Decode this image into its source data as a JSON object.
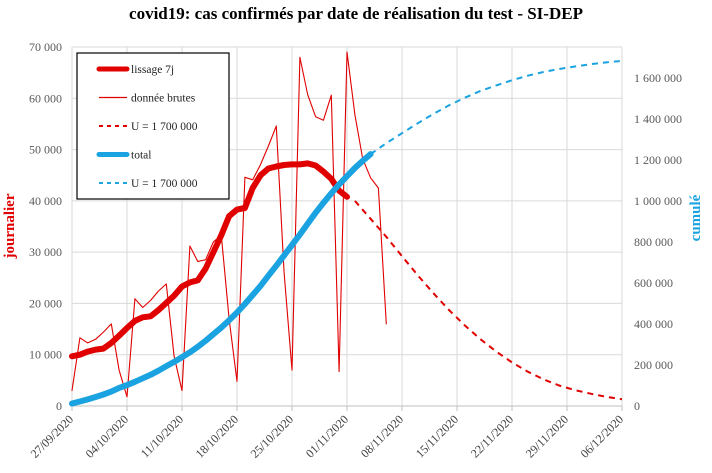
{
  "chart_data": {
    "type": "line",
    "title": "covid19: cas confirmés par date de réalisation du test - SI-DEP",
    "y_left": {
      "label": "journalier",
      "color": "#e00000",
      "range": [
        0,
        70000
      ],
      "ticks": [
        "0",
        "10 000",
        "20 000",
        "30 000",
        "40 000",
        "50 000",
        "60 000",
        "70 000"
      ]
    },
    "y_right": {
      "label": "cumulé",
      "color": "#1aa3e0",
      "range": [
        0,
        1750000
      ],
      "ticks": [
        "0",
        "200 000",
        "400 000",
        "600 000",
        "800 000",
        "1 000 000",
        "1 200 000",
        "1 400 000",
        "1 600 000"
      ]
    },
    "x_range": [
      0,
      70
    ],
    "x_ticks": [
      {
        "x": 0,
        "label": "27/09/2020"
      },
      {
        "x": 7,
        "label": "04/10/2020"
      },
      {
        "x": 14,
        "label": "11/10/2020"
      },
      {
        "x": 21,
        "label": "18/10/2020"
      },
      {
        "x": 28,
        "label": "25/10/2020"
      },
      {
        "x": 35,
        "label": "01/11/2020"
      },
      {
        "x": 42,
        "label": "08/11/2020"
      },
      {
        "x": 49,
        "label": "15/11/2020"
      },
      {
        "x": 56,
        "label": "22/11/2020"
      },
      {
        "x": 63,
        "label": "29/11/2020"
      },
      {
        "x": 70,
        "label": "06/12/2020"
      }
    ],
    "legend": {
      "position": "top-left",
      "entries": [
        {
          "label": "lissage 7j",
          "color": "#e00000",
          "style": "thick"
        },
        {
          "label": "donnée brutes",
          "color": "#e00000",
          "style": "thin"
        },
        {
          "label": "U = 1 700 000",
          "color": "#e00000",
          "style": "dashed"
        },
        {
          "label": "total",
          "color": "#1aa3e0",
          "style": "thick"
        },
        {
          "label": "U = 1 700 000",
          "color": "#1aa3e0",
          "style": "dashed"
        }
      ]
    },
    "series": [
      {
        "name": "lissage 7j",
        "axis": "left",
        "color": "#e00000",
        "style": "thick",
        "x": [
          0,
          1,
          2,
          3,
          4,
          5,
          6,
          7,
          8,
          9,
          10,
          11,
          12,
          13,
          14,
          15,
          16,
          17,
          18,
          19,
          20,
          21,
          22,
          23,
          24,
          25,
          26,
          27,
          28,
          29,
          30,
          31,
          32,
          33,
          34,
          35,
          36,
          37,
          38,
          39
        ],
        "y": [
          9700,
          10000,
          10600,
          11000,
          11200,
          12300,
          13700,
          15200,
          16600,
          17300,
          17500,
          18700,
          20100,
          21500,
          23300,
          24100,
          24500,
          26800,
          30000,
          33300,
          37000,
          38300,
          38600,
          42500,
          45000,
          46300,
          46700,
          47000,
          47100,
          47100,
          47300,
          46900,
          45700,
          44300,
          42000,
          40800,
          null,
          null,
          null,
          null
        ]
      },
      {
        "name": "donnée brutes",
        "axis": "left",
        "color": "#e00000",
        "style": "thin",
        "x": [
          0,
          1,
          2,
          3,
          4,
          5,
          6,
          7,
          8,
          9,
          10,
          11,
          12,
          13,
          14,
          15,
          16,
          17,
          18,
          19,
          20,
          21,
          22,
          23,
          24,
          25,
          26,
          27,
          28,
          29,
          30,
          31,
          32,
          33,
          34,
          35,
          36,
          37,
          38,
          39,
          40,
          41
        ],
        "y": [
          3000,
          13300,
          12300,
          13000,
          14400,
          16000,
          7000,
          1800,
          20900,
          19200,
          20600,
          22400,
          23800,
          9700,
          3000,
          31200,
          28200,
          28500,
          32000,
          33300,
          17000,
          4800,
          44600,
          44100,
          47100,
          50700,
          54600,
          26000,
          7000,
          68000,
          60700,
          56400,
          55700,
          60600,
          6700,
          69000,
          56800,
          48200,
          44500,
          42500,
          16000,
          null
        ]
      },
      {
        "name": "U = 1 700 000 (journalier)",
        "axis": "left",
        "color": "#e00000",
        "style": "dashed",
        "x": [
          36,
          38,
          40,
          42,
          44,
          46,
          48,
          50,
          52,
          54,
          56,
          58,
          60,
          62,
          64,
          66,
          68,
          70
        ],
        "y": [
          40000,
          36500,
          33000,
          29200,
          25500,
          22000,
          18700,
          15700,
          13000,
          10600,
          8500,
          6700,
          5200,
          4000,
          3100,
          2400,
          1800,
          1300
        ]
      },
      {
        "name": "total",
        "axis": "right",
        "color": "#1aa3e0",
        "style": "thick",
        "x": [
          0,
          1,
          2,
          3,
          4,
          5,
          6,
          7,
          8,
          9,
          10,
          11,
          12,
          13,
          14,
          15,
          16,
          17,
          18,
          19,
          20,
          21,
          22,
          23,
          24,
          25,
          26,
          27,
          28,
          29,
          30,
          31,
          32,
          33,
          34,
          35,
          36,
          37,
          38
        ],
        "y": [
          12000,
          22000,
          32000,
          44000,
          56000,
          70000,
          88000,
          102000,
          118000,
          135000,
          152000,
          172000,
          194000,
          215000,
          238000,
          262000,
          288000,
          318000,
          350000,
          382000,
          418000,
          456000,
          497000,
          541000,
          586000,
          635000,
          684000,
          734000,
          785000,
          836000,
          889000,
          942000,
          990000,
          1037000,
          1080000,
          1120000,
          1160000,
          1195000,
          1228000
        ]
      },
      {
        "name": "U = 1 700 000 (cumulé)",
        "axis": "right",
        "color": "#1aa3e0",
        "style": "dashed",
        "x": [
          38,
          40,
          42,
          44,
          46,
          48,
          50,
          52,
          54,
          56,
          58,
          60,
          62,
          64,
          66,
          68,
          70
        ],
        "y": [
          1228000,
          1281000,
          1330000,
          1378000,
          1424000,
          1466000,
          1503000,
          1536000,
          1563000,
          1588000,
          1610000,
          1628000,
          1643000,
          1655000,
          1666000,
          1675000,
          1682000
        ]
      }
    ]
  }
}
